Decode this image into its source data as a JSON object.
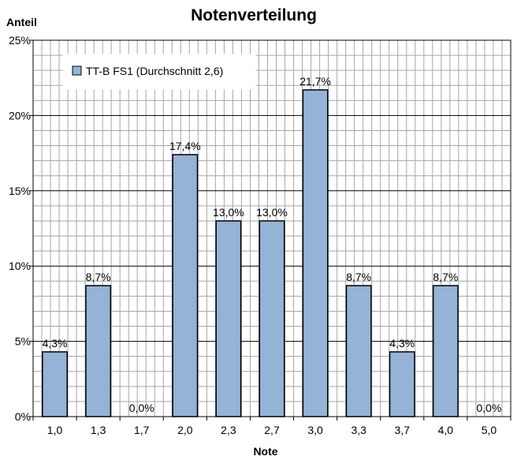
{
  "chart_data": {
    "type": "bar",
    "title": "Notenverteilung",
    "xlabel": "Note",
    "ylabel": "Anteil",
    "categories": [
      "1,0",
      "1,3",
      "1,7",
      "2,0",
      "2,3",
      "2,7",
      "3,0",
      "3,3",
      "3,7",
      "4,0",
      "5,0"
    ],
    "series": [
      {
        "name": "TT-B FS1 (Durchschnitt 2,6)",
        "values": [
          4.3,
          8.7,
          0.0,
          17.4,
          13.0,
          13.0,
          21.7,
          8.7,
          4.3,
          8.7,
          0.0
        ],
        "data_labels": [
          "4,3%",
          "8,7%",
          "0,0%",
          "17,4%",
          "13,0%",
          "13,0%",
          "21,7%",
          "8,7%",
          "4,3%",
          "8,7%",
          "0,0%"
        ],
        "color": "#95b3d7"
      }
    ],
    "ylim": [
      0,
      25
    ],
    "yticks": [
      0,
      5,
      10,
      15,
      20,
      25
    ],
    "ytick_labels": [
      "0%",
      "5%",
      "10%",
      "15%",
      "20%",
      "25%"
    ],
    "grid": true,
    "legend_position": "top-left"
  }
}
